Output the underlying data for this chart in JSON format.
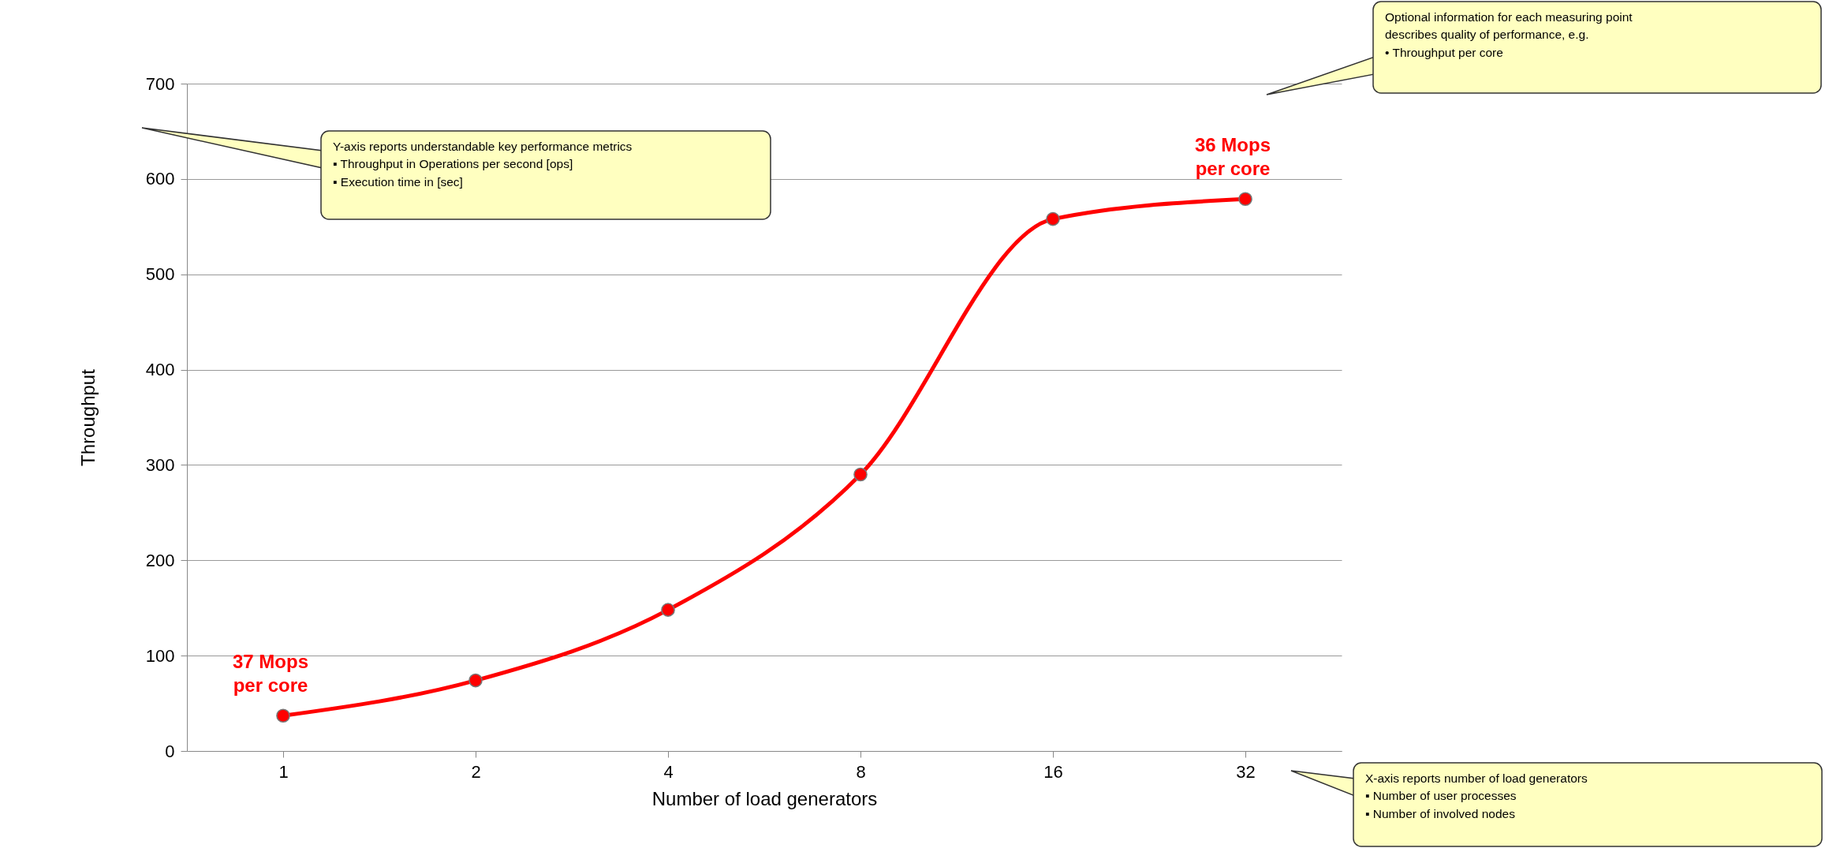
{
  "chart_data": {
    "type": "line",
    "xlabel": "Number of load generators",
    "ylabel": "Throughput",
    "categories": [
      "1",
      "2",
      "4",
      "8",
      "16",
      "32"
    ],
    "series": [
      {
        "color": "#ff0000",
        "values": [
          37,
          74,
          148,
          290,
          558,
          579
        ]
      }
    ],
    "ylim": [
      0,
      700
    ],
    "yticks": [
      0,
      100,
      200,
      300,
      400,
      500,
      600,
      700
    ],
    "grid": "y",
    "marker": "circle",
    "line_style": "solid",
    "annotations": [
      {
        "text": "37 Mops\nper core",
        "x": "1",
        "y": 37
      },
      {
        "text": "36 Mops\nper core",
        "x": "32",
        "y": 579
      },
      "Y-axis reports understandable key performance metrics\n▪ Throughput in Operations per second [ops]\n▪ Execution time in [sec]",
      "Optional information for each measuring point\ndescribes quality of performance, e.g.\n• Throughput per core",
      "X-axis reports number of load generators\n▪ Number of user processes\n▪ Number of involved nodes"
    ]
  }
}
